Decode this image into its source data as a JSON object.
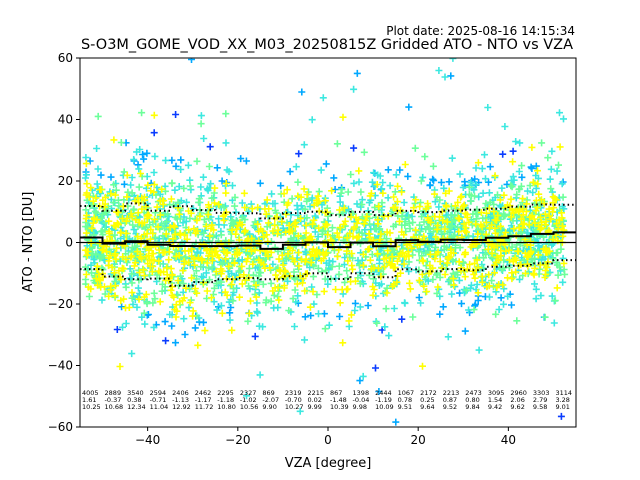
{
  "header": {
    "plot_date": "Plot date: 2025-08-16 14:15:34",
    "title": "S-O3M_GOME_VOD_XX_M03_20250815Z Gridded ATO - NTO vs VZA"
  },
  "colors": {
    "palette": [
      "#0a3cff",
      "#00a8ff",
      "#3ce8e0",
      "#6cff9a",
      "#ffff00"
    ],
    "mean_line": "#000000",
    "std_line": "#000000",
    "axis": "#000000"
  },
  "chart_data": {
    "type": "scatter",
    "marker": "plus",
    "title": "S-O3M_GOME_VOD_XX_M03_20250815Z Gridded ATO - NTO vs VZA",
    "xlabel": "VZA [degree]",
    "ylabel": "ATO - NTO [DU]",
    "xlim": [
      -55,
      55
    ],
    "ylim": [
      -60,
      60
    ],
    "xticks": [
      -40,
      -20,
      0,
      20,
      40
    ],
    "yticks": [
      -60,
      -40,
      -20,
      0,
      20,
      40,
      60
    ],
    "zero_line": 0,
    "grid": false,
    "bins": {
      "edges": [
        -55,
        -50,
        -45,
        -40,
        -35,
        -30,
        -25,
        -20,
        -15,
        -10,
        -5,
        0,
        5,
        10,
        15,
        20,
        25,
        30,
        35,
        40,
        45,
        50,
        55
      ],
      "count": [
        "4005",
        "2889",
        "3540",
        "2594",
        "2406",
        "2462",
        "2295",
        "2327",
        "869",
        "2319",
        "2215",
        "867",
        "1398",
        "2444",
        "1067",
        "2172",
        "2213",
        "2473",
        "3095",
        "2960",
        "3303",
        "3114"
      ],
      "mean": [
        "1.61",
        "-0.37",
        "0.38",
        "-0.71",
        "-1.13",
        "-1.17",
        "-1.18",
        "-1.02",
        "-2.07",
        "-0.70",
        "0.02",
        "-1.48",
        "-0.04",
        "-1.19",
        "0.78",
        "0.25",
        "0.87",
        "0.80",
        "1.54",
        "2.06",
        "2.79",
        "3.28"
      ],
      "std": [
        "10.25",
        "10.68",
        "12.34",
        "11.04",
        "12.92",
        "11.72",
        "10.80",
        "10.56",
        "9.90",
        "10.27",
        "9.99",
        "10.39",
        "9.98",
        "10.09",
        "9.51",
        "9.64",
        "9.52",
        "9.84",
        "9.42",
        "9.62",
        "9.58",
        "9.01"
      ]
    }
  }
}
